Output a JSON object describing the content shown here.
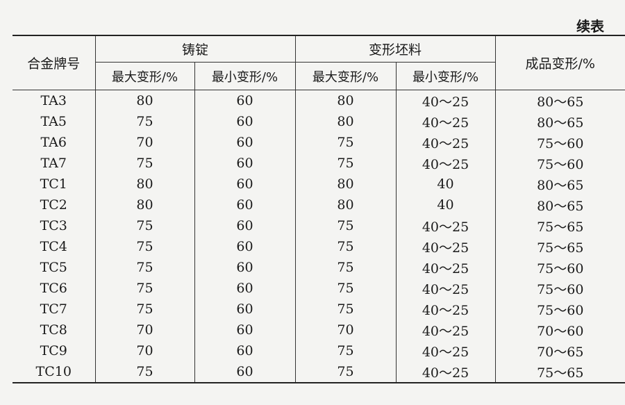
{
  "continued_label": "续表",
  "headers": {
    "alloy": "合金牌号",
    "ingot": "铸锭",
    "billet": "变形坯料",
    "product": "成品变形/%",
    "max": "最大变形/%",
    "min": "最小变形/%"
  },
  "rows": [
    [
      "TA3",
      "80",
      "60",
      "80",
      "40～25",
      "80～65"
    ],
    [
      "TA5",
      "75",
      "60",
      "80",
      "40～25",
      "80～65"
    ],
    [
      "TA6",
      "70",
      "60",
      "75",
      "40～25",
      "75～60"
    ],
    [
      "TA7",
      "75",
      "60",
      "75",
      "40～25",
      "75～60"
    ],
    [
      "TC1",
      "80",
      "60",
      "80",
      "40",
      "80～65"
    ],
    [
      "TC2",
      "80",
      "60",
      "80",
      "40",
      "80～65"
    ],
    [
      "TC3",
      "75",
      "60",
      "75",
      "40～25",
      "75～65"
    ],
    [
      "TC4",
      "75",
      "60",
      "75",
      "40～25",
      "75～65"
    ],
    [
      "TC5",
      "75",
      "60",
      "75",
      "40～25",
      "75～60"
    ],
    [
      "TC6",
      "75",
      "60",
      "75",
      "40～25",
      "75～60"
    ],
    [
      "TC7",
      "75",
      "60",
      "75",
      "40～25",
      "75～60"
    ],
    [
      "TC8",
      "70",
      "60",
      "70",
      "40～25",
      "70～60"
    ],
    [
      "TC9",
      "70",
      "60",
      "75",
      "40～25",
      "70～65"
    ],
    [
      "TC10",
      "75",
      "60",
      "75",
      "40～25",
      "75～65"
    ]
  ]
}
